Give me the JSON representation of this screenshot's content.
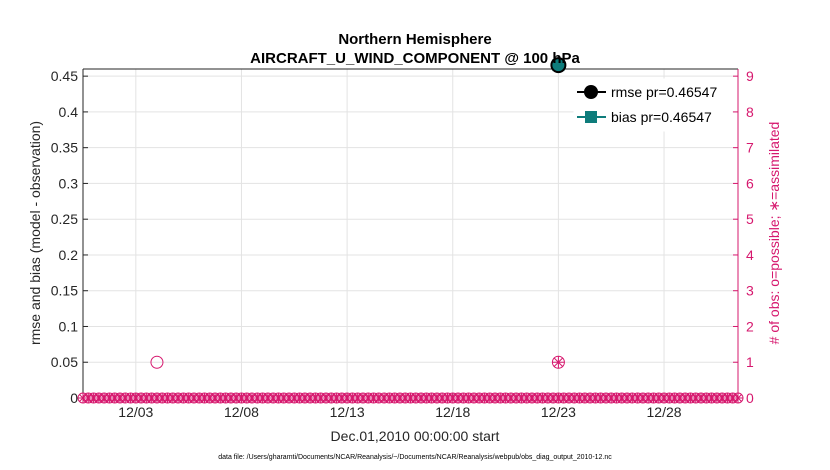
{
  "chart_data": {
    "type": "scatter",
    "title_line1": "Northern Hemisphere",
    "title_line2": "AIRCRAFT_U_WIND_COMPONENT @ 100 hPa",
    "xlabel": "Dec.01,2010 00:00:00 start",
    "ylabel_left": "rmse and bias (model - observation)",
    "ylabel_right": "# of obs: o=possible; ∗=assimilated",
    "x_ticks": [
      {
        "day": 3,
        "label": "12/03"
      },
      {
        "day": 8,
        "label": "12/08"
      },
      {
        "day": 13,
        "label": "12/13"
      },
      {
        "day": 18,
        "label": "12/18"
      },
      {
        "day": 23,
        "label": "12/23"
      },
      {
        "day": 28,
        "label": "12/28"
      }
    ],
    "xlim": [
      0.5,
      31.5
    ],
    "ylim_left": [
      0,
      0.46
    ],
    "yticks_left": [
      "0",
      "0.05",
      "0.1",
      "0.15",
      "0.2",
      "0.25",
      "0.3",
      "0.35",
      "0.4",
      "0.45"
    ],
    "ylim_right": [
      0,
      9.2
    ],
    "yticks_right": [
      "0",
      "1",
      "2",
      "3",
      "4",
      "5",
      "6",
      "7",
      "8",
      "9"
    ],
    "grid": true,
    "legend_position": "top-right",
    "series": [
      {
        "name": "rmse pr=0.46547",
        "color": "#000000",
        "marker": "circle",
        "x": [
          23
        ],
        "y": [
          0.46547
        ]
      },
      {
        "name": "bias pr=0.46547",
        "color": "#0e7c7b",
        "marker": "square",
        "x": [
          23
        ],
        "y": [
          0.46547
        ]
      }
    ],
    "obs_possible": {
      "color": "#d6186e",
      "marker": "circle",
      "x_start": 0.5,
      "x_step": 0.25,
      "count": 125,
      "nonzero": [
        {
          "x": 4,
          "value": 1
        },
        {
          "x": 23,
          "value": 1
        }
      ]
    },
    "obs_assimilated": {
      "color": "#d6186e",
      "marker": "asterisk",
      "x_start": 0.5,
      "x_step": 0.25,
      "count": 125,
      "nonzero": [
        {
          "x": 23,
          "value": 1
        }
      ]
    },
    "footer": "data file: /Users/gharamti/Documents/NCAR/Reanalysis/~/Documents/NCAR/Reanalysis/webpub/obs_diag_output_2010-12.nc"
  }
}
